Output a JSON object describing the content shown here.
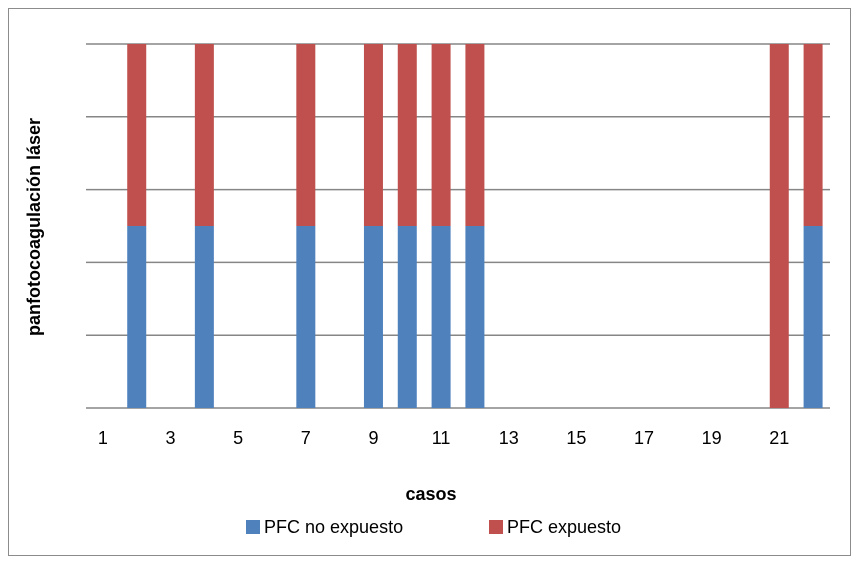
{
  "chart_data": {
    "type": "bar",
    "stacked": true,
    "xlabel": "casos",
    "ylabel": "panfotocoagulación láser",
    "x_ticks": [
      "1",
      "3",
      "5",
      "7",
      "9",
      "11",
      "13",
      "15",
      "17",
      "19",
      "21"
    ],
    "categories": [
      "1",
      "2",
      "3",
      "4",
      "5",
      "6",
      "7",
      "8",
      "9",
      "10",
      "11",
      "12",
      "13",
      "14",
      "15",
      "16",
      "17",
      "18",
      "19",
      "20",
      "21",
      "22"
    ],
    "ylim": [
      0,
      2
    ],
    "grid": true,
    "legend_position": "bottom",
    "series": [
      {
        "name": "PFC no expuesto",
        "color": "#4f81bd",
        "values": [
          0,
          1,
          0,
          1,
          0,
          0,
          1,
          0,
          1,
          1,
          1,
          1,
          0,
          0,
          0,
          0,
          0,
          0,
          0,
          0,
          0,
          1
        ]
      },
      {
        "name": "PFC expuesto",
        "color": "#c0504d",
        "values": [
          0,
          1,
          0,
          1,
          0,
          0,
          1,
          0,
          1,
          1,
          1,
          1,
          0,
          0,
          0,
          0,
          0,
          0,
          0,
          0,
          2,
          1
        ]
      }
    ]
  }
}
